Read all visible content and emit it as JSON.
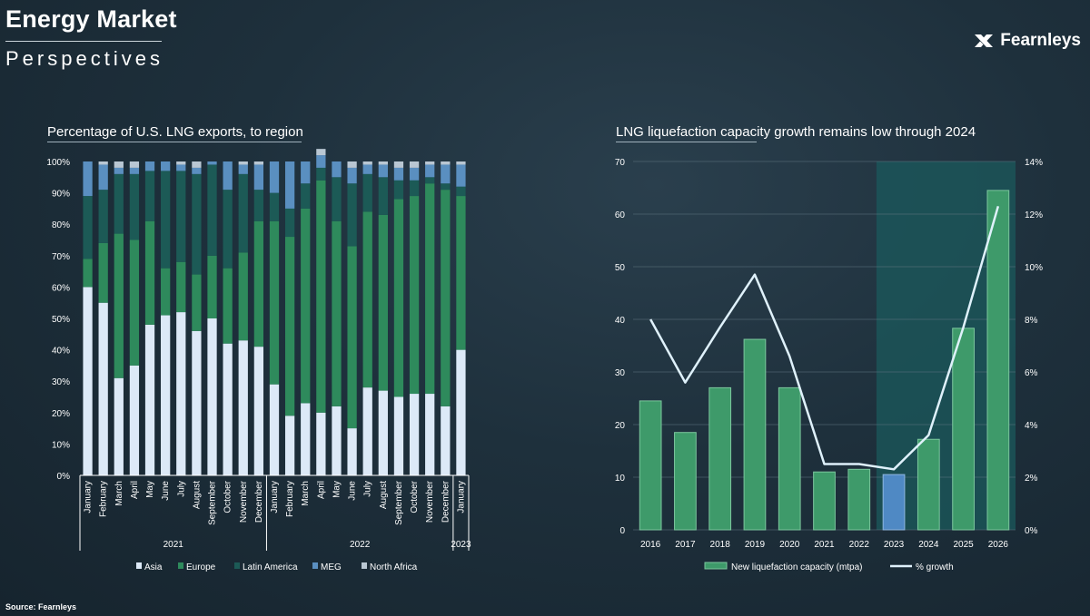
{
  "header": {
    "title": "Energy Market",
    "subtitle": "Perspectives",
    "brand": "Fearnleys"
  },
  "source": "Source: Fearnleys",
  "colors": {
    "asia": "#dce9f7",
    "europe": "#2e8a5c",
    "latin_america": "#1c5a56",
    "meg": "#5a8fc0",
    "north_africa": "#b9c7d3",
    "capacity_bar": "#3e9a6a",
    "capacity_bar_2023": "#4f89c4",
    "growth_line": "#dff1fb",
    "shade": "#1b5a5c"
  },
  "chart_data": [
    {
      "type": "bar",
      "stacked": true,
      "title": "Percentage of U.S. LNG exports, to region",
      "categories": [
        "January",
        "February",
        "March",
        "April",
        "May",
        "June",
        "July",
        "August",
        "September",
        "October",
        "November",
        "December",
        "January",
        "February",
        "March",
        "April",
        "May",
        "June",
        "July",
        "August",
        "September",
        "October",
        "November",
        "December",
        "January"
      ],
      "year_groups": [
        {
          "label": "2021",
          "count": 12
        },
        {
          "label": "2022",
          "count": 12
        },
        {
          "label": "2023",
          "count": 1
        }
      ],
      "ylim": [
        0,
        100
      ],
      "yticks": [
        "0%",
        "10%",
        "20%",
        "30%",
        "40%",
        "50%",
        "60%",
        "70%",
        "80%",
        "90%",
        "100%"
      ],
      "series": [
        {
          "name": "Asia",
          "values": [
            60,
            55,
            31,
            35,
            48,
            51,
            52,
            46,
            50,
            42,
            43,
            41,
            29,
            19,
            23,
            20,
            22,
            15,
            28,
            27,
            25,
            26,
            26,
            22,
            40
          ]
        },
        {
          "name": "Europe",
          "values": [
            9,
            19,
            46,
            40,
            33,
            15,
            16,
            18,
            20,
            24,
            28,
            40,
            52,
            57,
            62,
            74,
            59,
            58,
            56,
            56,
            63,
            63,
            67,
            69,
            49
          ]
        },
        {
          "name": "Latin America",
          "values": [
            20,
            17,
            19,
            21,
            16,
            31,
            29,
            32,
            29,
            25,
            25,
            10,
            9,
            9,
            8,
            4,
            14,
            20,
            12,
            12,
            6,
            5,
            2,
            2,
            3
          ]
        },
        {
          "name": "MEG",
          "values": [
            11,
            8,
            2,
            2,
            3,
            3,
            2,
            2,
            1,
            9,
            3,
            8,
            10,
            15,
            7,
            4,
            5,
            5,
            3,
            4,
            4,
            4,
            4,
            6,
            7
          ]
        },
        {
          "name": "North Africa",
          "values": [
            0,
            1,
            2,
            2,
            0,
            0,
            1,
            2,
            0,
            0,
            1,
            1,
            0,
            0,
            0,
            2,
            0,
            2,
            1,
            1,
            2,
            2,
            1,
            1,
            1
          ]
        }
      ]
    },
    {
      "type": "bar+line",
      "title": "LNG liquefaction capacity growth remains low through 2024",
      "categories": [
        "2016",
        "2017",
        "2018",
        "2019",
        "2020",
        "2021",
        "2022",
        "2023",
        "2024",
        "2025",
        "2026"
      ],
      "highlight_category": "2023",
      "shaded_range": [
        "2023",
        "2026"
      ],
      "ylim_left": [
        0,
        70
      ],
      "yticks_left": [
        "0",
        "10",
        "20",
        "30",
        "40",
        "50",
        "60",
        "70"
      ],
      "ylim_right": [
        0,
        14
      ],
      "yticks_right": [
        "0%",
        "2%",
        "4%",
        "6%",
        "8%",
        "10%",
        "12%",
        "14%"
      ],
      "series": [
        {
          "name": "New liquefaction capacity (mtpa)",
          "kind": "bar",
          "axis": "left",
          "values": [
            24.5,
            18.5,
            27,
            36.2,
            27,
            11,
            11.5,
            10.5,
            17.2,
            38.3,
            64.5
          ]
        },
        {
          "name": "% growth",
          "kind": "line",
          "axis": "right",
          "values": [
            8.0,
            5.6,
            7.7,
            9.7,
            6.6,
            2.5,
            2.5,
            2.3,
            3.6,
            7.7,
            12.3
          ]
        }
      ]
    }
  ]
}
